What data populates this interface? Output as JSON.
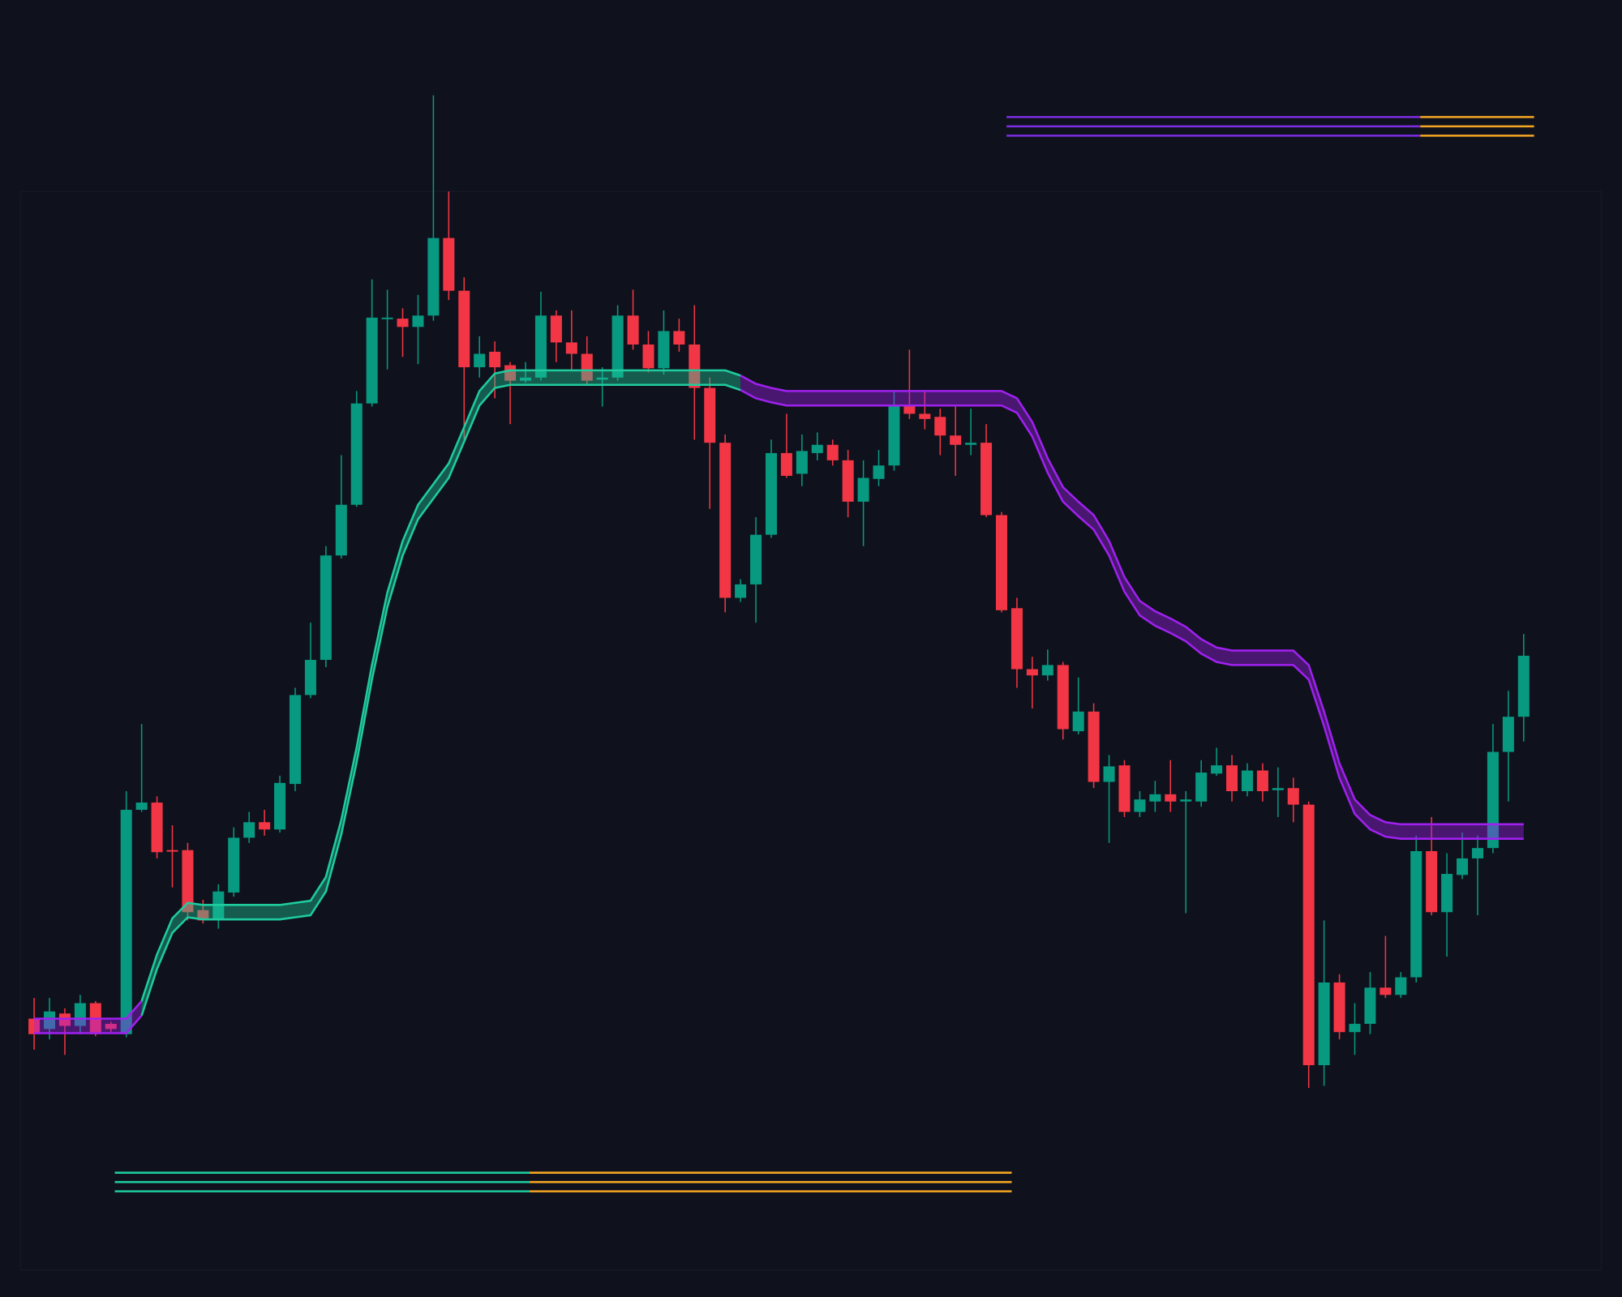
{
  "chart_data": {
    "type": "candlestick",
    "ylim": [
      0,
      125
    ],
    "up_color": "#089981",
    "down_color": "#f23645",
    "candles": {
      "open": [
        26.5,
        25.5,
        27.0,
        25.8,
        28.0,
        26.0,
        25.0,
        46.7,
        47.4,
        42.8,
        42.8,
        37.0,
        36.0,
        38.7,
        44.0,
        45.5,
        44.8,
        49.2,
        57.8,
        61.2,
        71.3,
        76.2,
        86.0,
        94.2,
        94.2,
        93.4,
        94.5,
        102.0,
        96.9,
        89.5,
        91.0,
        89.7,
        88.2,
        88.5,
        94.5,
        91.9,
        90.8,
        88.3,
        88.5,
        94.5,
        91.7,
        89.4,
        93.0,
        91.7,
        87.5,
        82.2,
        67.2,
        68.5,
        73.3,
        81.2,
        79.2,
        81.2,
        82.0,
        80.5,
        76.5,
        78.7,
        80.0,
        85.8,
        85.0,
        84.7,
        82.9,
        82.0,
        82.2,
        75.2,
        66.2,
        60.3,
        59.7,
        60.7,
        54.3,
        56.2,
        49.4,
        51.0,
        46.5,
        47.5,
        48.2,
        47.5,
        47.5,
        50.2,
        51.0,
        48.5,
        50.5,
        48.6,
        48.8,
        47.2,
        22.0,
        30.0,
        25.2,
        26.0,
        29.5,
        28.8,
        30.5,
        42.7,
        36.8,
        40.4,
        42.0,
        43.0,
        52.3,
        55.7
      ],
      "high": [
        28.5,
        28.5,
        27.5,
        28.8,
        28.2,
        26.2,
        48.5,
        55.0,
        48.0,
        45.2,
        43.5,
        38.0,
        39.5,
        45.0,
        46.5,
        46.7,
        50.0,
        58.5,
        64.8,
        72.2,
        81.0,
        87.2,
        98.0,
        97.0,
        95.2,
        96.5,
        115.8,
        106.5,
        98.2,
        92.5,
        92.0,
        90.0,
        90.0,
        96.8,
        95.0,
        95.0,
        92.5,
        89.5,
        95.5,
        97.0,
        93.0,
        95.0,
        94.2,
        95.5,
        88.5,
        83.0,
        69.0,
        75.0,
        82.5,
        85.0,
        83.0,
        83.2,
        82.5,
        81.5,
        80.5,
        81.5,
        87.2,
        91.2,
        87.2,
        85.5,
        85.7,
        85.5,
        84.0,
        75.5,
        67.2,
        61.5,
        62.2,
        61.0,
        59.5,
        57.0,
        52.0,
        51.5,
        48.5,
        49.5,
        51.5,
        48.5,
        51.5,
        52.7,
        52.0,
        51.2,
        51.2,
        50.8,
        49.8,
        47.5,
        36.0,
        30.8,
        28.0,
        31.0,
        34.5,
        31.0,
        44.2,
        46.0,
        42.5,
        44.5,
        44.2,
        55.0,
        58.2,
        63.7
      ],
      "low": [
        23.5,
        24.5,
        23.0,
        25.0,
        24.8,
        25.2,
        24.7,
        46.5,
        42.0,
        39.2,
        36.0,
        35.7,
        35.2,
        38.3,
        43.5,
        44.2,
        44.5,
        48.5,
        57.5,
        60.5,
        71.0,
        76.0,
        85.7,
        89.3,
        90.5,
        89.8,
        94.0,
        96.0,
        82.5,
        88.5,
        86.5,
        84.0,
        88.0,
        88.2,
        90.0,
        89.2,
        87.8,
        85.7,
        88.2,
        91.2,
        89.0,
        88.8,
        91.0,
        82.5,
        75.8,
        65.8,
        66.8,
        64.8,
        73.0,
        78.8,
        78.0,
        80.5,
        80.0,
        75.0,
        72.2,
        78.0,
        79.5,
        84.5,
        83.5,
        81.0,
        79.0,
        81.0,
        75.0,
        65.8,
        58.5,
        56.5,
        59.2,
        53.5,
        54.0,
        48.8,
        43.5,
        46.0,
        46.0,
        46.5,
        46.5,
        36.7,
        47.0,
        50.0,
        47.5,
        48.0,
        47.5,
        46.0,
        45.5,
        19.8,
        20.0,
        24.5,
        23.0,
        25.0,
        28.5,
        28.5,
        30.0,
        36.5,
        32.5,
        40.0,
        36.5,
        42.5,
        47.5,
        53.3
      ],
      "close": [
        25.0,
        27.2,
        25.8,
        28.0,
        25.0,
        25.5,
        46.7,
        47.4,
        42.6,
        42.7,
        36.8,
        36.0,
        38.8,
        44.0,
        45.5,
        44.8,
        49.3,
        57.8,
        61.2,
        71.3,
        76.2,
        86.0,
        94.3,
        94.3,
        93.4,
        94.5,
        102.0,
        96.9,
        89.5,
        90.8,
        89.5,
        88.2,
        88.5,
        94.5,
        91.9,
        90.8,
        88.2,
        88.5,
        94.5,
        91.7,
        89.4,
        93.0,
        91.7,
        87.5,
        82.2,
        67.2,
        68.5,
        73.3,
        81.2,
        79.0,
        81.4,
        82.0,
        80.5,
        76.5,
        78.8,
        80.0,
        85.8,
        85.0,
        84.5,
        82.9,
        82.0,
        82.2,
        75.2,
        66.0,
        60.3,
        59.7,
        60.7,
        54.5,
        56.2,
        49.4,
        50.9,
        46.5,
        47.7,
        48.2,
        47.5,
        47.7,
        50.3,
        51.0,
        48.5,
        50.5,
        48.5,
        48.8,
        47.2,
        22.0,
        30.0,
        25.2,
        26.0,
        29.5,
        28.8,
        30.5,
        42.7,
        36.8,
        40.5,
        42.0,
        43.0,
        52.3,
        55.7,
        61.6
      ]
    },
    "band": [
      {
        "color": "#a020f0",
        "upper": [
          26.5,
          26.5,
          26.5,
          26.5,
          26.5,
          26.5,
          26.5,
          28.2,
          null,
          null,
          null,
          null,
          null,
          null,
          null,
          null,
          null,
          null,
          null,
          null,
          null,
          null,
          null,
          null,
          null,
          null,
          null,
          null,
          null,
          null,
          null,
          null,
          null,
          null,
          null,
          null,
          null,
          null,
          null,
          null,
          null,
          null,
          null,
          null,
          null,
          null,
          null,
          null,
          null,
          null,
          null,
          null,
          null,
          null,
          null,
          null,
          null,
          null,
          null,
          null,
          null,
          null,
          null,
          null,
          null,
          null,
          null,
          null,
          null,
          null,
          null,
          null,
          null,
          null,
          null,
          null,
          null,
          null,
          null,
          null,
          null,
          null,
          null,
          null,
          null,
          null,
          null,
          null,
          null,
          null,
          null,
          null,
          null,
          null,
          null,
          null,
          null,
          null
        ],
        "lower": [
          25.1,
          25.1,
          25.1,
          25.1,
          25.1,
          25.1,
          25.1,
          26.8,
          null,
          null,
          null,
          null,
          null,
          null,
          null,
          null,
          null,
          null,
          null,
          null,
          null,
          null,
          null,
          null,
          null,
          null,
          null,
          null,
          null,
          null,
          null,
          null,
          null,
          null,
          null,
          null,
          null,
          null,
          null,
          null,
          null,
          null,
          null,
          null,
          null,
          null,
          null,
          null,
          null,
          null,
          null,
          null,
          null,
          null,
          null,
          null,
          null,
          null,
          null,
          null,
          null,
          null,
          null,
          null,
          null,
          null,
          null,
          null,
          null,
          null,
          null,
          null,
          null,
          null,
          null,
          null,
          null,
          null,
          null,
          null,
          null,
          null,
          null,
          null,
          null,
          null,
          null,
          null,
          null,
          null,
          null,
          null,
          null,
          null,
          null,
          null,
          null,
          null
        ]
      },
      {
        "color": "#1fcc9e",
        "upper": [
          null,
          null,
          null,
          null,
          null,
          null,
          null,
          28.2,
          32.7,
          36.2,
          37.7,
          37.5,
          37.5,
          37.5,
          37.5,
          37.5,
          37.5,
          37.7,
          37.9,
          40.2,
          45.7,
          52.7,
          60.7,
          67.7,
          72.7,
          76.2,
          78.2,
          80.2,
          83.7,
          87.2,
          88.9,
          89.2,
          89.2,
          89.2,
          89.2,
          89.2,
          89.2,
          89.2,
          89.2,
          89.2,
          89.2,
          89.2,
          89.2,
          89.2,
          89.2,
          89.2,
          88.7,
          null,
          null,
          null,
          null,
          null,
          null,
          null,
          null,
          null,
          null,
          null,
          null,
          null,
          null,
          null,
          null,
          null,
          null,
          null,
          null,
          null,
          null,
          null,
          null,
          null,
          null,
          null,
          null,
          null,
          null,
          null,
          null,
          null,
          null,
          null,
          null,
          null,
          null,
          null,
          null,
          null,
          null,
          null,
          null,
          null,
          null,
          null,
          null,
          null,
          null,
          null
        ],
        "lower": [
          null,
          null,
          null,
          null,
          null,
          null,
          null,
          26.8,
          31.3,
          34.8,
          36.3,
          36.1,
          36.1,
          36.1,
          36.1,
          36.1,
          36.1,
          36.3,
          36.5,
          38.8,
          44.3,
          51.3,
          59.3,
          66.3,
          71.3,
          74.8,
          76.8,
          78.8,
          82.3,
          85.8,
          87.5,
          87.8,
          87.8,
          87.8,
          87.8,
          87.8,
          87.8,
          87.8,
          87.8,
          87.8,
          87.8,
          87.8,
          87.8,
          87.8,
          87.8,
          87.8,
          87.3,
          null,
          null,
          null,
          null,
          null,
          null,
          null,
          null,
          null,
          null,
          null,
          null,
          null,
          null,
          null,
          null,
          null,
          null,
          null,
          null,
          null,
          null,
          null,
          null,
          null,
          null,
          null,
          null,
          null,
          null,
          null,
          null,
          null,
          null,
          null,
          null,
          null,
          null,
          null,
          null,
          null,
          null,
          null,
          null,
          null,
          null,
          null,
          null,
          null,
          null,
          null
        ]
      },
      {
        "color": "#a020f0",
        "upper": [
          null,
          null,
          null,
          null,
          null,
          null,
          null,
          null,
          null,
          null,
          null,
          null,
          null,
          null,
          null,
          null,
          null,
          null,
          null,
          null,
          null,
          null,
          null,
          null,
          null,
          null,
          null,
          null,
          null,
          null,
          null,
          null,
          null,
          null,
          null,
          null,
          null,
          null,
          null,
          null,
          null,
          null,
          null,
          null,
          null,
          null,
          88.7,
          87.9,
          87.5,
          87.2,
          87.2,
          87.2,
          87.2,
          87.2,
          87.2,
          87.2,
          87.2,
          87.2,
          87.2,
          87.2,
          87.2,
          87.2,
          87.2,
          87.2,
          86.5,
          84.2,
          80.7,
          77.9,
          76.5,
          75.2,
          72.7,
          69.2,
          66.9,
          65.9,
          65.2,
          64.4,
          63.2,
          62.4,
          62.1,
          62.1,
          62.1,
          62.1,
          62.1,
          60.7,
          56.2,
          51.2,
          47.7,
          46.2,
          45.5,
          45.3,
          45.3,
          45.3,
          45.3,
          45.3,
          45.3,
          45.3,
          45.3,
          45.3
        ],
        "lower": [
          null,
          null,
          null,
          null,
          null,
          null,
          null,
          null,
          null,
          null,
          null,
          null,
          null,
          null,
          null,
          null,
          null,
          null,
          null,
          null,
          null,
          null,
          null,
          null,
          null,
          null,
          null,
          null,
          null,
          null,
          null,
          null,
          null,
          null,
          null,
          null,
          null,
          null,
          null,
          null,
          null,
          null,
          null,
          null,
          null,
          null,
          87.3,
          86.5,
          86.1,
          85.8,
          85.8,
          85.8,
          85.8,
          85.8,
          85.8,
          85.8,
          85.8,
          85.8,
          85.8,
          85.8,
          85.8,
          85.8,
          85.8,
          85.8,
          85.1,
          82.8,
          79.3,
          76.5,
          75.1,
          73.8,
          71.3,
          67.8,
          65.5,
          64.5,
          63.8,
          63.0,
          61.8,
          61.0,
          60.7,
          60.7,
          60.7,
          60.7,
          60.7,
          59.3,
          54.8,
          49.8,
          46.3,
          44.8,
          44.1,
          43.9,
          43.9,
          43.9,
          43.9,
          43.9,
          43.9,
          43.9,
          43.9,
          43.9
        ]
      }
    ]
  }
}
